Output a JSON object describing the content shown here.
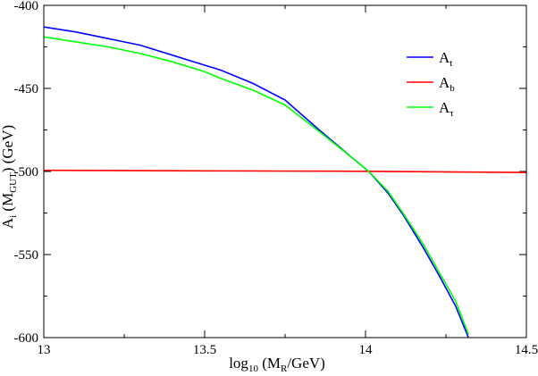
{
  "chart_data": {
    "type": "line",
    "xlabel": {
      "main": "log",
      "sub1": "10",
      "rest1": " (M",
      "sub2": "R",
      "rest2": "/GeV)"
    },
    "ylabel": {
      "main": "A",
      "sub1": "i",
      "rest1": " (M",
      "sub2": "GUT",
      "rest2": ")  (GeV)"
    },
    "xlim": [
      13,
      14.5
    ],
    "ylim": [
      -600,
      -400
    ],
    "xticks": [
      13,
      13.5,
      14,
      14.5
    ],
    "xtick_labels": [
      "13",
      "13.5",
      "14",
      "14.5"
    ],
    "yticks": [
      -400,
      -450,
      -500,
      -550,
      -600
    ],
    "ytick_labels": [
      "-400",
      "-450",
      "-500",
      "-550",
      "-600"
    ],
    "legend_position": "top-right",
    "series": [
      {
        "name": "A_t",
        "label_main": "A",
        "label_sub": "t",
        "color": "#0000ff",
        "x": [
          13.0,
          13.1,
          13.2,
          13.3,
          13.4,
          13.5,
          13.55,
          13.65,
          13.75,
          13.85,
          13.96,
          14.01,
          14.07,
          14.12,
          14.18,
          14.23,
          14.28,
          14.32
        ],
        "y": [
          -413,
          -416,
          -420,
          -424,
          -430,
          -436,
          -439,
          -447,
          -457,
          -474,
          -492,
          -500,
          -513,
          -527,
          -546,
          -563,
          -581,
          -600
        ]
      },
      {
        "name": "A_b",
        "label_main": "A",
        "label_sub": "b",
        "color": "#ff0000",
        "x": [
          13.0,
          13.5,
          14.0,
          14.5
        ],
        "y": [
          -499.3,
          -499.6,
          -499.9,
          -500.6
        ]
      },
      {
        "name": "A_tau",
        "label_main": "A",
        "label_sub": "τ",
        "color": "#00ff00",
        "x": [
          13.0,
          13.1,
          13.2,
          13.3,
          13.4,
          13.5,
          13.55,
          13.65,
          13.75,
          13.85,
          13.96,
          14.01,
          14.07,
          14.12,
          14.18,
          14.23,
          14.28,
          14.32
        ],
        "y": [
          -419,
          -422,
          -425,
          -429,
          -434,
          -440,
          -444,
          -451,
          -460,
          -475,
          -492,
          -500,
          -512,
          -526,
          -544,
          -561,
          -578,
          -598
        ]
      }
    ]
  }
}
